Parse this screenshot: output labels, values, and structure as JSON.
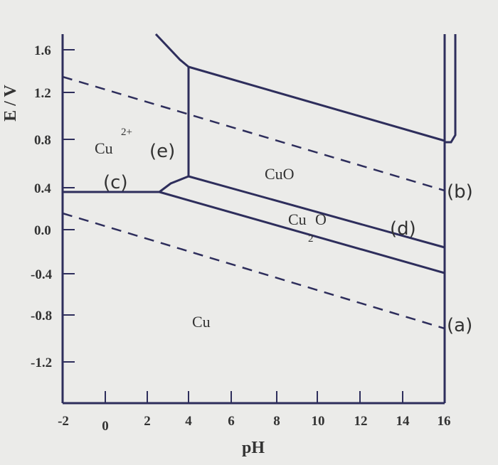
{
  "xlabel": "pH",
  "ylabel": "E / V",
  "x_ticks": [
    "-2",
    "0",
    "2",
    "4",
    "6",
    "8",
    "10",
    "12",
    "14",
    "16"
  ],
  "y_ticks": [
    "1.6",
    "1.2",
    "0.8",
    "0.4",
    "0.0",
    "-0.4",
    "-0.8",
    "-1.2"
  ],
  "regions": {
    "cu2": {
      "base": "Cu",
      "sup": "2+"
    },
    "cuo": "CuO",
    "cu2o": {
      "base": "Cu",
      "sub": "2",
      "tail": "O"
    },
    "cu": "Cu"
  },
  "curve_labels": {
    "a": "(a)",
    "b": "(b)",
    "c": "(c)",
    "d": "(d)",
    "e": "(e)"
  },
  "colors": {
    "line": "#2e2e5c",
    "text": "#333333",
    "background": "#ebebe9"
  }
}
